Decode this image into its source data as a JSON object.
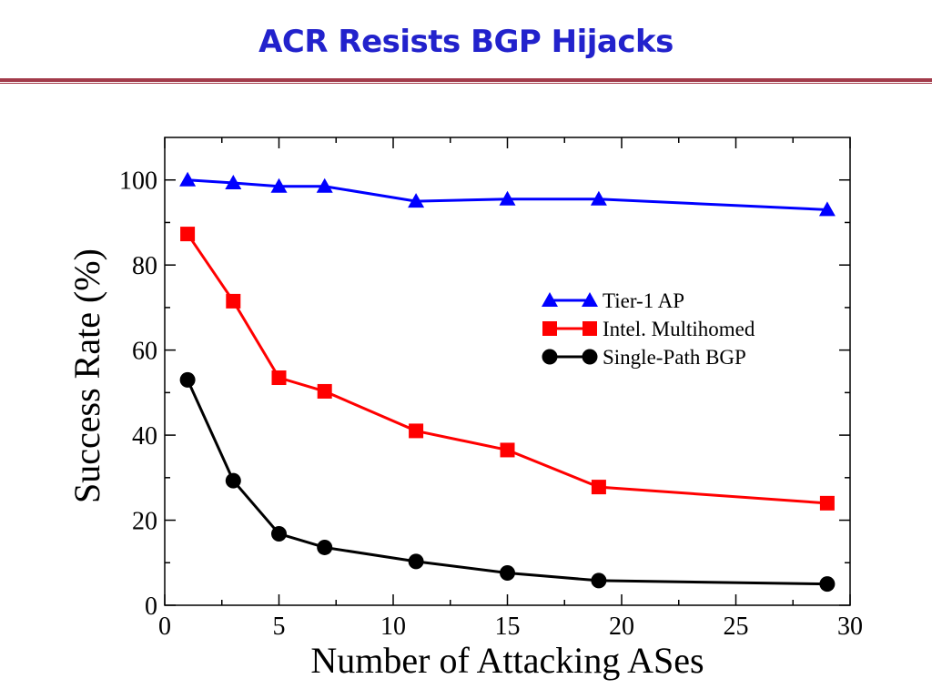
{
  "slide": {
    "title": "ACR Resists BGP Hijacks",
    "title_color": "#2222cc",
    "rule_color": "#a23a4a"
  },
  "chart_data": {
    "type": "line",
    "title": "",
    "xlabel": "Number of Attacking ASes",
    "ylabel": "Success Rate (%)",
    "xlim": [
      0,
      30
    ],
    "ylim": [
      0,
      110
    ],
    "xticks": [
      0,
      5,
      10,
      15,
      20,
      25,
      30
    ],
    "yticks": [
      0,
      20,
      40,
      60,
      80,
      100
    ],
    "grid": false,
    "legend_position": "upper-right",
    "series": [
      {
        "name": "Tier-1 AP",
        "color": "#0000ff",
        "marker": "triangle",
        "x": [
          1,
          3,
          5,
          7,
          11,
          15,
          19,
          29
        ],
        "y": [
          100,
          99.3,
          98.5,
          98.5,
          95,
          95.5,
          95.5,
          93
        ]
      },
      {
        "name": "Intel. Multihomed",
        "color": "#ff0000",
        "marker": "square",
        "x": [
          1,
          3,
          5,
          7,
          11,
          15,
          19,
          29
        ],
        "y": [
          87.3,
          71.5,
          53.5,
          50.3,
          41,
          36.5,
          27.8,
          24
        ]
      },
      {
        "name": "Single-Path BGP",
        "color": "#000000",
        "marker": "circle",
        "x": [
          1,
          3,
          5,
          7,
          11,
          15,
          19,
          29
        ],
        "y": [
          53,
          29.3,
          16.8,
          13.6,
          10.3,
          7.6,
          5.8,
          5
        ]
      }
    ]
  }
}
